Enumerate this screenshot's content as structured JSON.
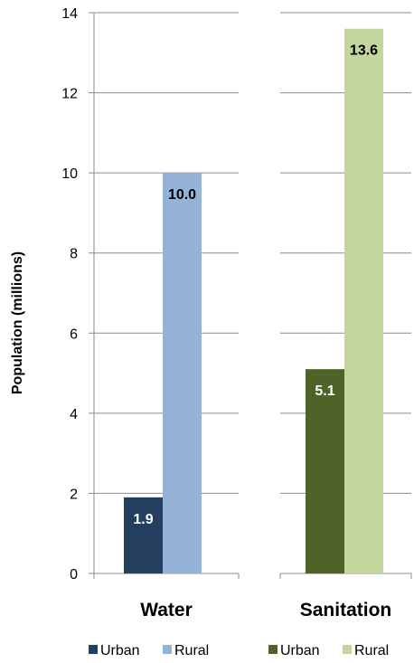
{
  "chart_data": {
    "type": "bar",
    "ylabel": "Population (millions)",
    "ylim": [
      0,
      14
    ],
    "yticks": [
      0,
      2,
      4,
      6,
      8,
      10,
      12,
      14
    ],
    "grid": true,
    "legend_position": "bottom",
    "panels": [
      {
        "category": "Water",
        "series": [
          {
            "name": "Urban",
            "value": 1.9,
            "label": "1.9",
            "color": "#243F60"
          },
          {
            "name": "Rural",
            "value": 10.0,
            "label": "10.0",
            "color": "#95B3D7"
          }
        ]
      },
      {
        "category": "Sanitation",
        "series": [
          {
            "name": "Urban",
            "value": 5.1,
            "label": "5.1",
            "color": "#4F6228"
          },
          {
            "name": "Rural",
            "value": 13.6,
            "label": "13.6",
            "color": "#C3D69B"
          }
        ]
      }
    ]
  }
}
